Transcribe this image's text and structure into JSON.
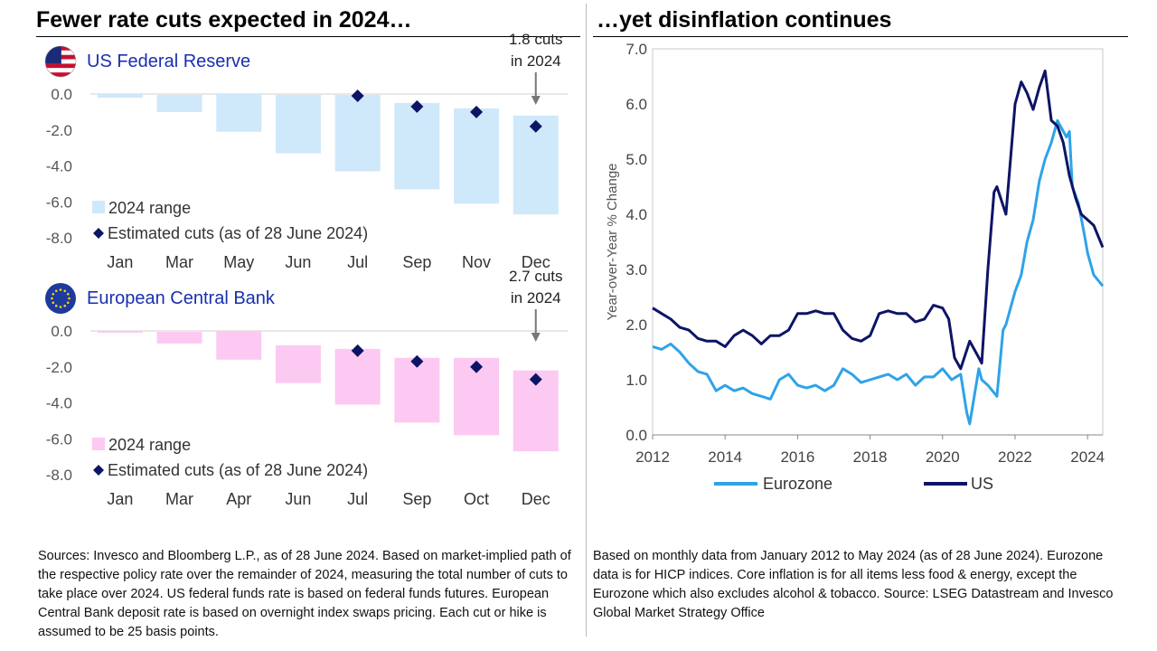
{
  "left_title": "Fewer rate cuts expected in 2024…",
  "right_title": "…yet disinflation continues",
  "left_footnote": "Sources: Invesco and Bloomberg L.P., as of 28 June 2024. Based on market-implied path of the respective policy rate over the remainder of 2024, measuring the total number of cuts to take place over 2024. US federal funds rate is based on federal funds futures. European Central Bank deposit rate is based on overnight index swaps pricing. Each cut or hike is assumed to be 25 basis points.",
  "right_footnote": "Based on monthly data from January 2012 to May 2024 (as of 28 June 2024). Eurozone data is for HICP indices. Core inflation is for all items less food & energy, except the Eurozone which also excludes alcohol & tobacco. Source: LSEG Datastream and Invesco Global Market Strategy Office",
  "colors": {
    "fed_bar": "#cfe8fa",
    "ecb_bar": "#fcc9f2",
    "marker": "#0d1466",
    "eurozone_line": "#2ea3e8",
    "us_line": "#0d1466",
    "bank_label": "#1a2fb0",
    "arrow": "#777777"
  },
  "chart_data": [
    {
      "type": "bar",
      "title": "US Federal Reserve",
      "icon": "us-flag-icon",
      "categories": [
        "Jan",
        "Mar",
        "May",
        "Jun",
        "Jul",
        "Sep",
        "Nov",
        "Dec"
      ],
      "range_top": [
        0.0,
        -0.05,
        0.0,
        -0.05,
        -0.05,
        -0.5,
        -0.8,
        -1.2
      ],
      "range_bottom": [
        -0.2,
        -1.0,
        -2.1,
        -3.3,
        -4.3,
        -5.3,
        -6.1,
        -6.7
      ],
      "estimated_cuts": [
        null,
        null,
        null,
        null,
        -0.1,
        -0.7,
        -1.0,
        -1.8
      ],
      "ylim": [
        -8,
        0
      ],
      "yticks": [
        "0.0",
        "-2.0",
        "-4.0",
        "-6.0",
        "-8.0"
      ],
      "ytick_values": [
        0,
        -2,
        -4,
        -6,
        -8
      ],
      "legend": [
        "2024 range",
        "Estimated cuts (as of 28 June 2024)"
      ],
      "callout": [
        "1.8 cuts",
        "in 2024"
      ]
    },
    {
      "type": "bar",
      "title": "European Central Bank",
      "icon": "eu-flag-icon",
      "categories": [
        "Jan",
        "Mar",
        "Apr",
        "Jun",
        "Jul",
        "Sep",
        "Oct",
        "Dec"
      ],
      "range_top": [
        0.0,
        -0.05,
        0.0,
        -0.8,
        -1.0,
        -1.5,
        -1.5,
        -2.2
      ],
      "range_bottom": [
        -0.1,
        -0.7,
        -1.6,
        -2.9,
        -4.1,
        -5.1,
        -5.8,
        -6.7
      ],
      "estimated_cuts": [
        null,
        null,
        null,
        null,
        -1.1,
        -1.7,
        -2.0,
        -2.7
      ],
      "ylim": [
        -8,
        0
      ],
      "yticks": [
        "0.0",
        "-2.0",
        "-4.0",
        "-6.0",
        "-8.0"
      ],
      "ytick_values": [
        0,
        -2,
        -4,
        -6,
        -8
      ],
      "legend": [
        "2024 range",
        "Estimated cuts (as of 28 June 2024)"
      ],
      "callout": [
        "2.7 cuts",
        "in 2024"
      ]
    },
    {
      "type": "line",
      "ylabel": "Year-over-Year % Change",
      "ylim": [
        0,
        7
      ],
      "xlim": [
        2012,
        2024.42
      ],
      "xticks": [
        "2012",
        "2014",
        "2016",
        "2018",
        "2020",
        "2022",
        "2024"
      ],
      "xtick_values": [
        2012,
        2014,
        2016,
        2018,
        2020,
        2022,
        2024
      ],
      "yticks": [
        "0.0",
        "1.0",
        "2.0",
        "3.0",
        "4.0",
        "5.0",
        "6.0",
        "7.0"
      ],
      "ytick_values": [
        0,
        1,
        2,
        3,
        4,
        5,
        6,
        7
      ],
      "series": [
        {
          "name": "Eurozone",
          "x": [
            2012.0,
            2012.25,
            2012.5,
            2012.75,
            2013.0,
            2013.25,
            2013.5,
            2013.75,
            2014.0,
            2014.25,
            2014.5,
            2014.75,
            2015.0,
            2015.25,
            2015.5,
            2015.75,
            2016.0,
            2016.25,
            2016.5,
            2016.75,
            2017.0,
            2017.25,
            2017.5,
            2017.75,
            2018.0,
            2018.25,
            2018.5,
            2018.75,
            2019.0,
            2019.25,
            2019.5,
            2019.75,
            2020.0,
            2020.25,
            2020.5,
            2020.67,
            2020.75,
            2021.0,
            2021.08,
            2021.25,
            2021.5,
            2021.67,
            2021.75,
            2022.0,
            2022.17,
            2022.33,
            2022.5,
            2022.67,
            2022.83,
            2023.0,
            2023.17,
            2023.25,
            2023.42,
            2023.5,
            2023.58,
            2023.75,
            2023.92,
            2024.0,
            2024.17,
            2024.42
          ],
          "y": [
            1.6,
            1.55,
            1.65,
            1.5,
            1.3,
            1.15,
            1.1,
            0.8,
            0.9,
            0.8,
            0.85,
            0.75,
            0.7,
            0.65,
            1.0,
            1.1,
            0.9,
            0.85,
            0.9,
            0.8,
            0.9,
            1.2,
            1.1,
            0.95,
            1.0,
            1.05,
            1.1,
            1.0,
            1.1,
            0.9,
            1.05,
            1.05,
            1.2,
            1.0,
            1.1,
            0.4,
            0.2,
            1.2,
            1.0,
            0.9,
            0.7,
            1.9,
            2.0,
            2.6,
            2.9,
            3.5,
            3.9,
            4.6,
            5.0,
            5.3,
            5.7,
            5.6,
            5.4,
            5.5,
            4.5,
            4.2,
            3.6,
            3.3,
            2.9,
            2.7
          ]
        },
        {
          "name": "US",
          "x": [
            2012.0,
            2012.25,
            2012.5,
            2012.75,
            2013.0,
            2013.25,
            2013.5,
            2013.75,
            2014.0,
            2014.25,
            2014.5,
            2014.75,
            2015.0,
            2015.25,
            2015.5,
            2015.75,
            2016.0,
            2016.25,
            2016.5,
            2016.75,
            2017.0,
            2017.25,
            2017.5,
            2017.75,
            2018.0,
            2018.25,
            2018.5,
            2018.75,
            2019.0,
            2019.25,
            2019.5,
            2019.75,
            2020.0,
            2020.17,
            2020.33,
            2020.5,
            2020.75,
            2021.0,
            2021.08,
            2021.25,
            2021.42,
            2021.5,
            2021.75,
            2022.0,
            2022.17,
            2022.33,
            2022.5,
            2022.67,
            2022.83,
            2023.0,
            2023.17,
            2023.33,
            2023.5,
            2023.67,
            2023.83,
            2024.0,
            2024.17,
            2024.42
          ],
          "y": [
            2.3,
            2.2,
            2.1,
            1.95,
            1.9,
            1.75,
            1.7,
            1.7,
            1.6,
            1.8,
            1.9,
            1.8,
            1.65,
            1.8,
            1.8,
            1.9,
            2.2,
            2.2,
            2.25,
            2.2,
            2.2,
            1.9,
            1.75,
            1.7,
            1.8,
            2.2,
            2.25,
            2.2,
            2.2,
            2.05,
            2.1,
            2.35,
            2.3,
            2.1,
            1.4,
            1.2,
            1.7,
            1.4,
            1.3,
            3.0,
            4.4,
            4.5,
            4.0,
            6.0,
            6.4,
            6.2,
            5.9,
            6.3,
            6.6,
            5.7,
            5.6,
            5.3,
            4.7,
            4.3,
            4.0,
            3.9,
            3.8,
            3.4
          ]
        }
      ]
    }
  ]
}
